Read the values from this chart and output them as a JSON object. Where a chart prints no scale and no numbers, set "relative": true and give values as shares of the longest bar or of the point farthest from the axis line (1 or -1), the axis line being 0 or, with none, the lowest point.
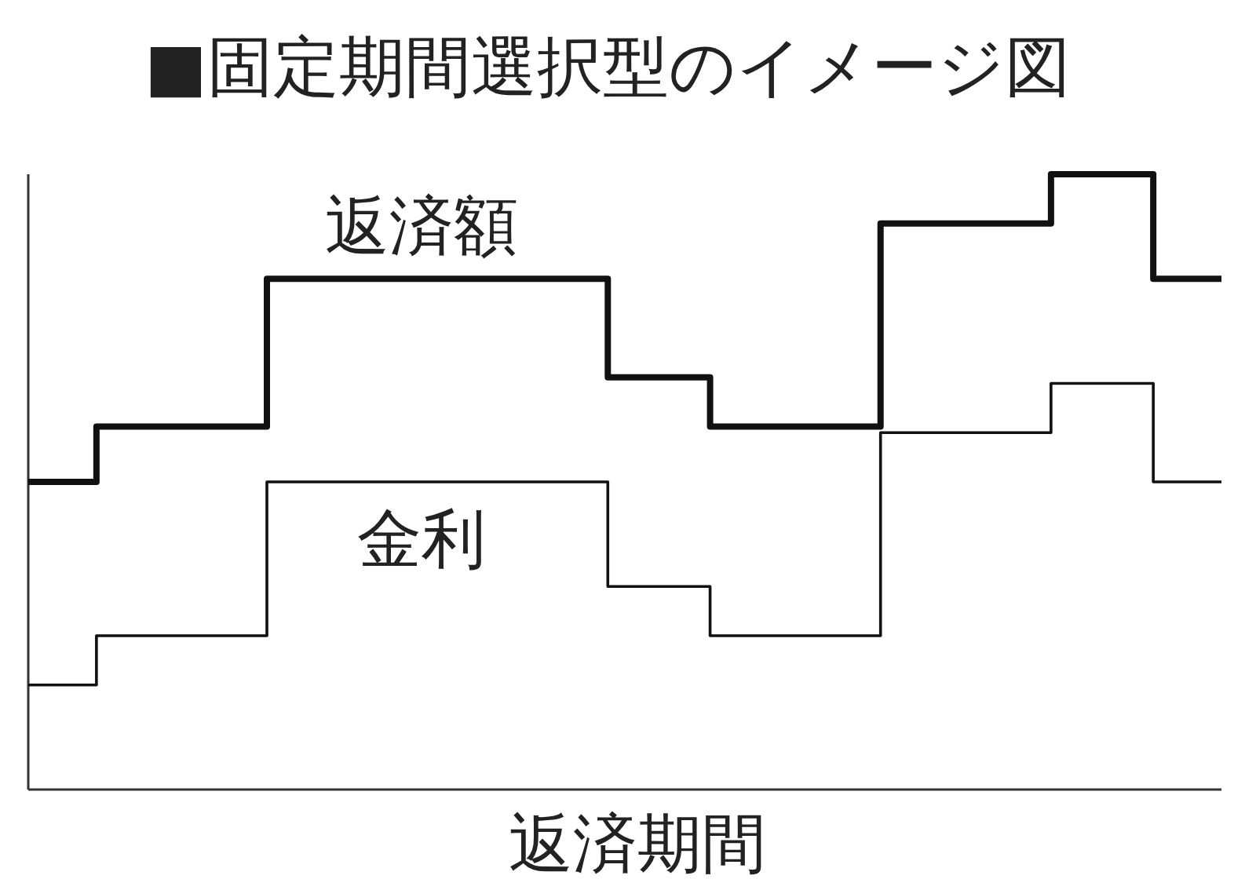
{
  "chart_data": {
    "type": "step",
    "title": "■固定期間選択型のイメージ図",
    "xlabel": "返済期間",
    "relative": true,
    "categories": [
      null,
      null,
      null,
      null,
      null,
      null,
      null,
      null,
      null,
      null,
      null,
      null,
      null,
      null,
      null,
      null,
      null,
      null,
      null,
      null,
      null,
      null,
      null,
      null,
      null,
      null,
      null,
      null,
      null,
      null,
      null,
      null,
      null,
      null,
      null,
      null
    ],
    "series": [
      {
        "name": "返済額",
        "color": "#111111",
        "values": [
          0.5,
          0.5,
          0.59,
          0.59,
          0.59,
          0.59,
          0.59,
          0.83,
          0.83,
          0.83,
          0.83,
          0.83,
          0.83,
          0.83,
          0.83,
          0.83,
          0.83,
          0.67,
          0.67,
          0.67,
          0.59,
          0.59,
          0.59,
          0.59,
          0.59,
          0.92,
          0.92,
          0.92,
          0.92,
          0.92,
          1,
          1,
          1,
          0.83,
          0.83,
          0.83
        ]
      },
      {
        "name": "金利",
        "color": "#111111",
        "values": [
          0.17,
          0.17,
          0.25,
          0.25,
          0.25,
          0.25,
          0.25,
          0.5,
          0.5,
          0.5,
          0.5,
          0.5,
          0.5,
          0.5,
          0.5,
          0.5,
          0.5,
          0.33,
          0.33,
          0.33,
          0.25,
          0.25,
          0.25,
          0.25,
          0.25,
          0.58,
          0.58,
          0.58,
          0.58,
          0.58,
          0.66,
          0.66,
          0.66,
          0.5,
          0.5,
          0.5
        ]
      }
    ]
  }
}
